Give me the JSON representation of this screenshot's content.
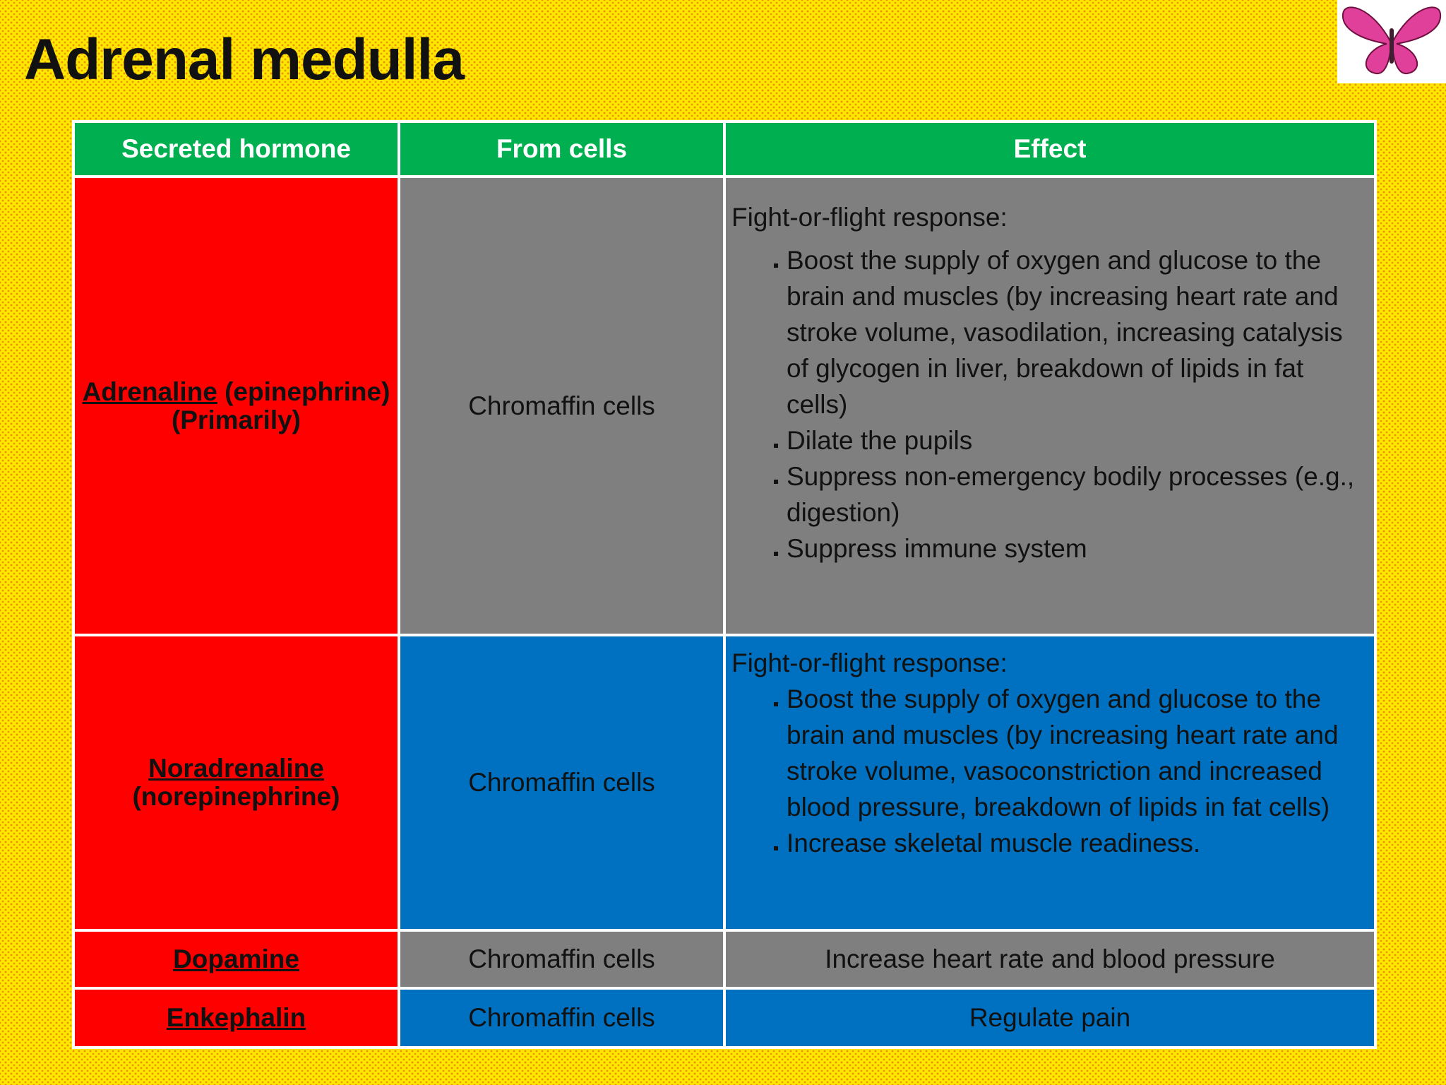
{
  "title": "Adrenal medulla",
  "table": {
    "header": [
      "Secreted hormone",
      "From cells",
      "Effect"
    ],
    "rows": [
      {
        "hormone": {
          "name": "Adrenaline",
          "note": "(epinephrine) (Primarily)"
        },
        "cells": "Chromaffin cells",
        "effect": {
          "intro": "Fight-or-flight response:",
          "bullets": [
            "Boost the supply of oxygen and glucose  to the brain and muscles (by increasing heart rate and stroke volume, vasodilation, increasing catalysis of glycogen in liver, breakdown of lipids in fat cells)",
            "Dilate the pupils",
            "Suppress non-emergency bodily processes (e.g., digestion)",
            "Suppress immune system"
          ]
        }
      },
      {
        "hormone": {
          "name": "Noradrenaline",
          "note": "(norepinephrine)"
        },
        "cells": "Chromaffin cells",
        "effect": {
          "intro": "Fight-or-flight response:",
          "bullets": [
            "Boost the supply of oxygen and glucose to the brain and muscles (by increasing heart rate and stroke volume, vasoconstriction and increased blood pressure, breakdown of lipids in fat cells)",
            "Increase skeletal muscle readiness."
          ]
        }
      },
      {
        "hormone": {
          "name": "Dopamine"
        },
        "cells": "Chromaffin cells",
        "effect": {
          "text": "Increase heart rate and blood pressure"
        }
      },
      {
        "hormone": {
          "name": "Enkephalin"
        },
        "cells": "Chromaffin cells",
        "effect": {
          "text": "Regulate pain"
        }
      }
    ]
  }
}
